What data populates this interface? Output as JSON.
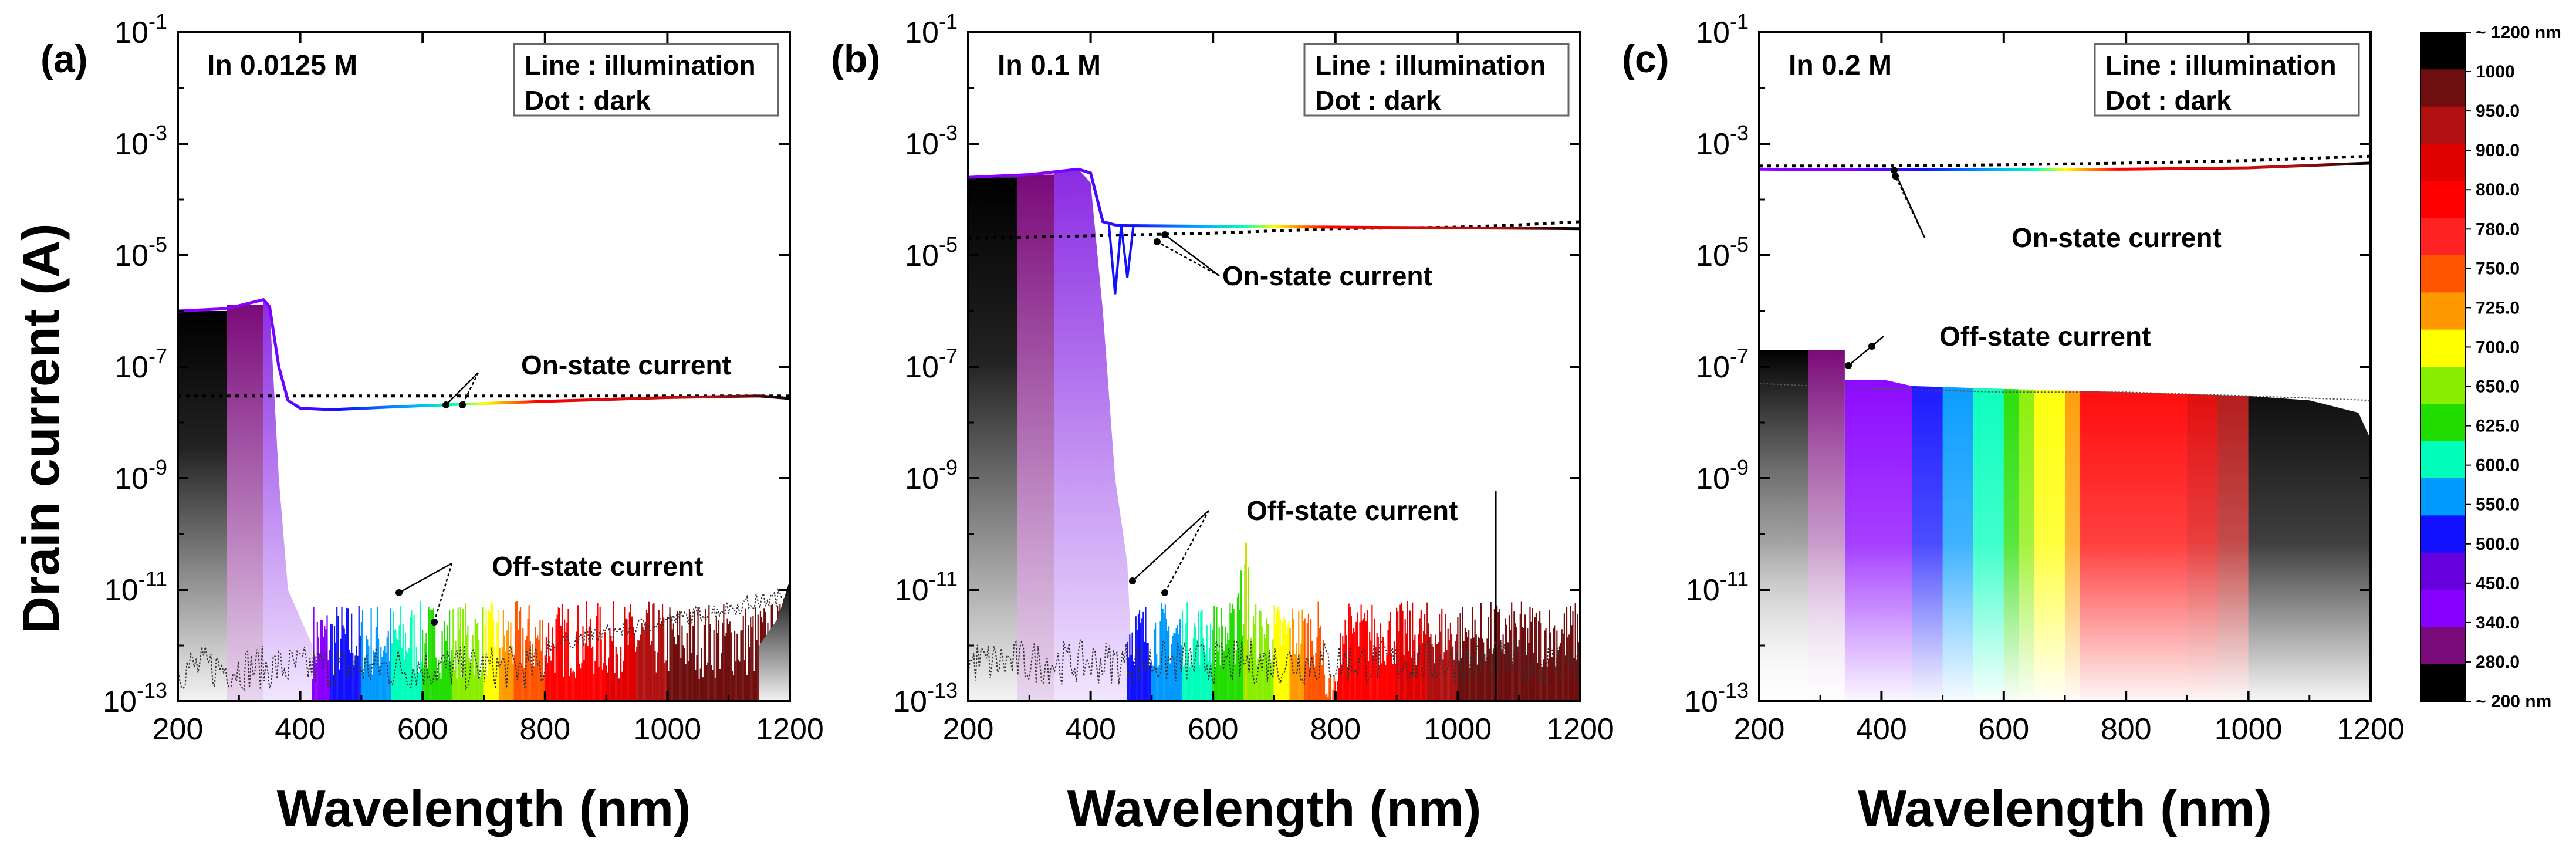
{
  "figure": {
    "ylabel": "Drain current (A)",
    "xlabel": "Wavelength (nm)"
  },
  "chart_data": [
    {
      "type": "line",
      "panel_label": "(a)",
      "condition": "In 0.0125 M",
      "legend": [
        "Line : illumination",
        "Dot : dark"
      ],
      "xlabel": "Wavelength (nm)",
      "ylabel": "Drain current (A)",
      "xlim": [
        200,
        1200
      ],
      "ylim": [
        1e-13,
        0.1
      ],
      "yscale": "log",
      "xticks": [
        200,
        400,
        600,
        800,
        1000,
        1200
      ],
      "yticks": [
        "10-13",
        "10-11",
        "10-9",
        "10-7",
        "10-5",
        "10-3",
        "10-1"
      ],
      "annotations": [
        "On-state current",
        "Off-state current"
      ],
      "series": [
        {
          "name": "On-state illumination",
          "style": "solid",
          "x": [
            200,
            280,
            340,
            350,
            365,
            380,
            400,
            450,
            600,
            800,
            1000,
            1150,
            1200
          ],
          "y": [
            1e-06,
            1.1e-06,
            1.6e-06,
            1.2e-06,
            1e-07,
            2.5e-08,
            1.8e-08,
            1.7e-08,
            2e-08,
            2.4e-08,
            2.8e-08,
            3e-08,
            2.7e-08
          ]
        },
        {
          "name": "On-state dark",
          "style": "dotted",
          "x": [
            200,
            600,
            800,
            1000,
            1200
          ],
          "y": [
            3e-08,
            3e-08,
            3e-08,
            3e-08,
            3e-08
          ]
        },
        {
          "name": "Off-state illumination",
          "style": "solid",
          "x": [
            200,
            280,
            340,
            360,
            370,
            380,
            420,
            600,
            800,
            1000,
            1100,
            1150,
            1180,
            1200
          ],
          "y": [
            1e-06,
            1e-06,
            1.3e-06,
            1e-08,
            1e-10,
            1e-11,
            2e-12,
            5e-13,
            5e-13,
            5e-13,
            5e-13,
            1e-12,
            3e-12,
            1.5e-11
          ]
        },
        {
          "name": "Off-state dark",
          "style": "dotted",
          "x": [
            200,
            400,
            600,
            800,
            1000,
            1100,
            1200
          ],
          "y": [
            4e-13,
            4e-13,
            5e-13,
            1.5e-12,
            3e-12,
            5e-12,
            8e-12
          ]
        }
      ]
    },
    {
      "type": "line",
      "panel_label": "(b)",
      "condition": "In 0.1 M",
      "legend": [
        "Line : illumination",
        "Dot : dark"
      ],
      "xlabel": "Wavelength (nm)",
      "ylabel": "Drain current (A)",
      "xlim": [
        200,
        1200
      ],
      "ylim": [
        1e-13,
        0.1
      ],
      "yscale": "log",
      "xticks": [
        200,
        400,
        600,
        800,
        1000,
        1200
      ],
      "yticks": [
        "10-13",
        "10-11",
        "10-9",
        "10-7",
        "10-5",
        "10-3",
        "10-1"
      ],
      "annotations": [
        "On-state current",
        "Off-state current"
      ],
      "series": [
        {
          "name": "On-state illumination",
          "style": "solid",
          "x": [
            200,
            300,
            380,
            400,
            420,
            440,
            460,
            600,
            800,
            1000,
            1200
          ],
          "y": [
            0.00025,
            0.00028,
            0.00035,
            0.0003,
            4e-05,
            3.5e-05,
            3.4e-05,
            3.3e-05,
            3.2e-05,
            3.1e-05,
            3e-05
          ]
        },
        {
          "name": "On-state dark",
          "style": "dotted",
          "x": [
            200,
            600,
            800,
            1000,
            1100,
            1200
          ],
          "y": [
            2e-05,
            2.5e-05,
            3e-05,
            3.2e-05,
            3.5e-05,
            4e-05
          ]
        },
        {
          "name": "Off-state illumination",
          "style": "solid",
          "x": [
            200,
            300,
            380,
            400,
            420,
            440,
            460,
            480,
            600,
            650,
            700,
            800,
            1000,
            1200
          ],
          "y": [
            0.00025,
            0.00028,
            0.00035,
            0.0002,
            1e-06,
            1e-09,
            3e-11,
            3e-12,
            2e-12,
            4e-12,
            2e-12,
            1e-13,
            2e-12,
            5e-12
          ]
        },
        {
          "name": "Off-state dark",
          "style": "dotted",
          "x": [
            200,
            400,
            600,
            800,
            1000,
            1200
          ],
          "y": [
            5e-13,
            5e-13,
            5e-13,
            6e-13,
            5e-13,
            1e-12
          ]
        }
      ]
    },
    {
      "type": "line",
      "panel_label": "(c)",
      "condition": "In 0.2 M",
      "legend": [
        "Line : illumination",
        "Dot : dark"
      ],
      "xlabel": "Wavelength (nm)",
      "ylabel": "Drain current (A)",
      "xlim": [
        200,
        1200
      ],
      "ylim": [
        1e-13,
        0.1
      ],
      "yscale": "log",
      "xticks": [
        200,
        400,
        600,
        800,
        1000,
        1200
      ],
      "yticks": [
        "10-13",
        "10-11",
        "10-9",
        "10-7",
        "10-5",
        "10-3",
        "10-1"
      ],
      "annotations": [
        "On-state current",
        "Off-state current"
      ],
      "series": [
        {
          "name": "On-state illumination",
          "style": "solid",
          "x": [
            200,
            400,
            600,
            800,
            1000,
            1200
          ],
          "y": [
            0.00035,
            0.00034,
            0.00034,
            0.00035,
            0.00037,
            0.00045
          ]
        },
        {
          "name": "On-state dark",
          "style": "dotted",
          "x": [
            200,
            400,
            600,
            800,
            1000,
            1200
          ],
          "y": [
            0.0004,
            0.0004,
            0.00042,
            0.00045,
            0.0005,
            0.0006
          ]
        },
        {
          "name": "Off-state illumination",
          "style": "solid",
          "x": [
            200,
            340,
            360,
            400,
            450,
            600,
            800,
            1000,
            1100,
            1180,
            1200
          ],
          "y": [
            2e-07,
            2e-07,
            1.5e-07,
            6e-08,
            4.5e-08,
            4e-08,
            3.5e-08,
            3e-08,
            2.5e-08,
            1.5e-08,
            5e-09
          ]
        },
        {
          "name": "Off-state dark",
          "style": "dotted",
          "x": [
            200,
            400,
            600,
            800,
            1000,
            1200
          ],
          "y": [
            5e-08,
            4e-08,
            3.5e-08,
            3.5e-08,
            3e-08,
            2.5e-08
          ]
        }
      ]
    }
  ],
  "colorbar": {
    "labels": [
      "~ 1200 nm",
      "1000",
      "950.0",
      "900.0",
      "800.0",
      "780.0",
      "750.0",
      "725.0",
      "700.0",
      "650.0",
      "625.0",
      "600.0",
      "550.0",
      "500.0",
      "450.0",
      "340.0",
      "280.0",
      "~ 200 nm"
    ],
    "colors": [
      "#000000",
      "#6e0e0e",
      "#b01010",
      "#e00000",
      "#ff0000",
      "#ff2222",
      "#ff5500",
      "#ff9900",
      "#ffff00",
      "#88ee00",
      "#22dd00",
      "#00ffbb",
      "#0099ff",
      "#1111ff",
      "#6600dd",
      "#8800ff",
      "#7a0a7a",
      "#000000"
    ]
  }
}
